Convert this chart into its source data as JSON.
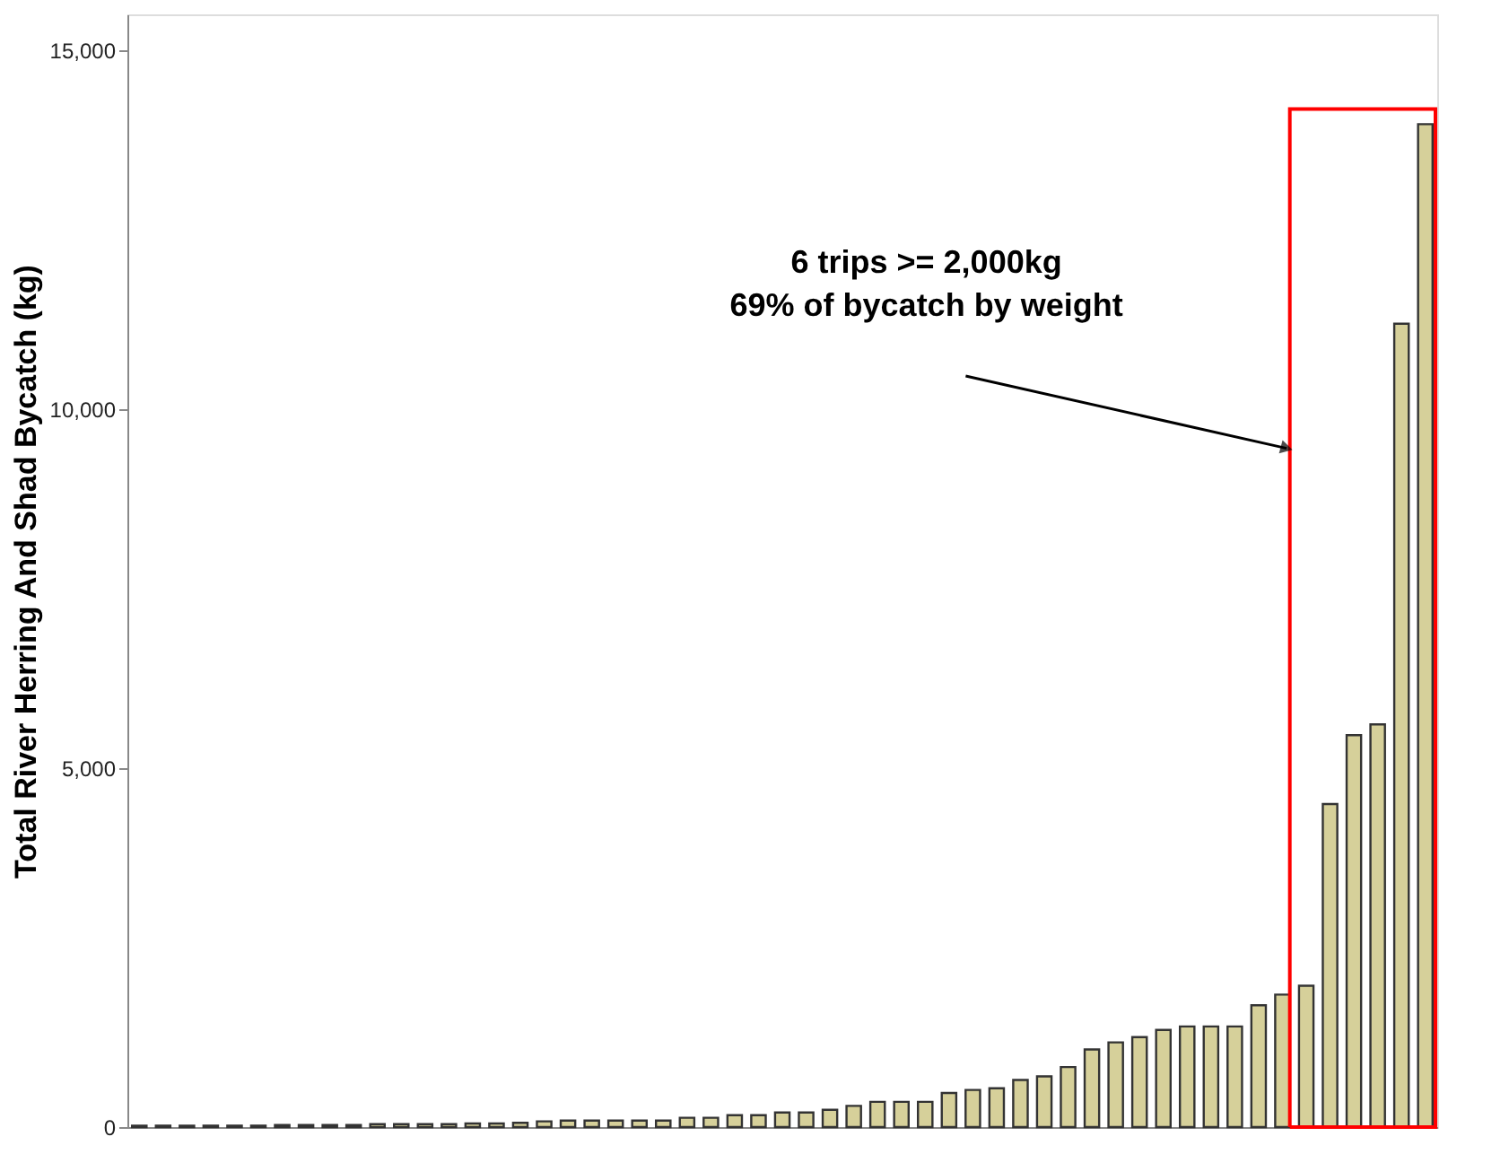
{
  "chart_data": {
    "type": "bar",
    "ylabel": "Total River Herring And Shad Bycatch (kg)",
    "categories": [
      null,
      null,
      null,
      null,
      null,
      null,
      null,
      null,
      null,
      null,
      null,
      null,
      null,
      null,
      null,
      null,
      null,
      null,
      null,
      null,
      null,
      null,
      null,
      null,
      null,
      null,
      null,
      null,
      null,
      null,
      null,
      null,
      null,
      null,
      null,
      null,
      null,
      null,
      null,
      null,
      null,
      null,
      null,
      null,
      null,
      null,
      null,
      null,
      null,
      null,
      null,
      null,
      null,
      null,
      null
    ],
    "values": [
      20,
      20,
      20,
      20,
      20,
      20,
      30,
      30,
      30,
      30,
      40,
      40,
      40,
      40,
      50,
      50,
      60,
      80,
      90,
      90,
      90,
      90,
      90,
      130,
      130,
      165,
      165,
      204,
      204,
      240,
      295,
      352,
      352,
      352,
      475,
      517,
      541,
      657,
      706,
      836,
      1082,
      1180,
      1254,
      1353,
      1402,
      1402,
      1402,
      1697,
      1845,
      1968,
      4500,
      5460,
      5610,
      11190,
      13970
    ],
    "color": "#d6d09a",
    "ylim": [
      0,
      15500
    ],
    "yticks": [
      {
        "value": 0,
        "label": "0"
      },
      {
        "value": 5000,
        "label": "5,000"
      },
      {
        "value": 10000,
        "label": "10,000"
      },
      {
        "value": 15000,
        "label": "15,000"
      }
    ],
    "grid": false,
    "annotations": [
      "6 trips >= 2,000kg\n69% of bycatch by weight"
    ]
  }
}
